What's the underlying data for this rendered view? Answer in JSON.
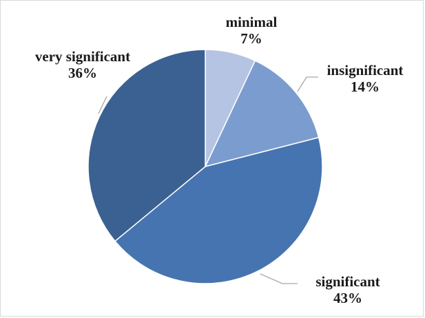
{
  "chart_data": {
    "type": "pie",
    "title": "",
    "slices": [
      {
        "label": "minimal",
        "value": 7,
        "value_label": "7%",
        "color": "#b4c4e2"
      },
      {
        "label": "insignificant",
        "value": 14,
        "value_label": "14%",
        "color": "#7b9cce"
      },
      {
        "label": "significant",
        "value": 43,
        "value_label": "43%",
        "color": "#4674b0"
      },
      {
        "label": "very significant",
        "value": 36,
        "value_label": "36%",
        "color": "#3a6192"
      }
    ],
    "start_angle": "12 o'clock",
    "direction": "clockwise",
    "legend": "none",
    "leader_line_color": "#a6a6a6"
  }
}
